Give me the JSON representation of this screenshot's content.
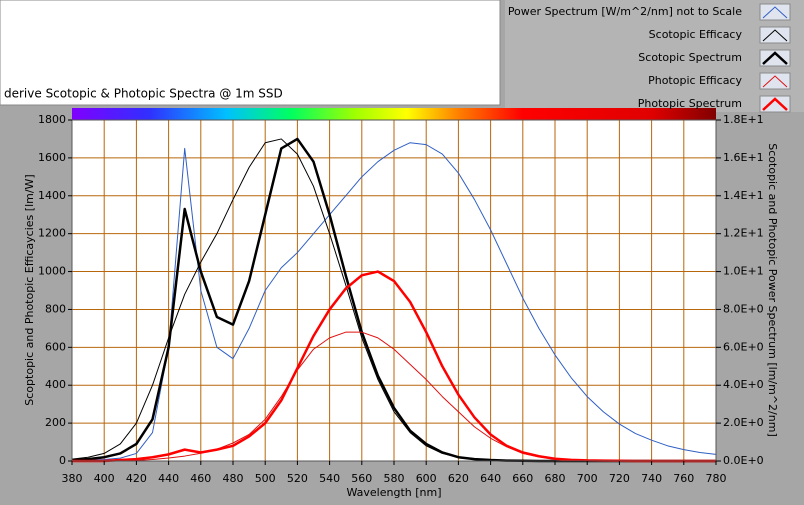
{
  "chart_data": {
    "type": "line",
    "title": "derive Scotopic & Photopic Spectra @ 1m SSD",
    "xlabel": "Wavelength [nm]",
    "ylabel": "Scoptopic and Photopic Efficaycies [lm/W]",
    "y2label": "Scotopic and Photopic Power Spectrum [lm/m^2/nm]",
    "x": [
      380,
      390,
      400,
      410,
      420,
      430,
      440,
      450,
      460,
      470,
      480,
      490,
      500,
      510,
      520,
      530,
      540,
      550,
      560,
      570,
      580,
      590,
      600,
      610,
      620,
      630,
      640,
      650,
      660,
      670,
      680,
      690,
      700,
      710,
      720,
      730,
      740,
      750,
      760,
      770,
      780
    ],
    "xlim": [
      380,
      780
    ],
    "xticks": [
      380,
      400,
      420,
      440,
      460,
      480,
      500,
      520,
      540,
      560,
      580,
      600,
      620,
      640,
      660,
      680,
      700,
      720,
      740,
      760,
      780
    ],
    "ylim": [
      0,
      1800
    ],
    "yticks": [
      0,
      200,
      400,
      600,
      800,
      1000,
      1200,
      1400,
      1600,
      1800
    ],
    "y2lim": [
      0,
      18
    ],
    "y2ticks": [
      {
        "value": 0,
        "label": "0.0E+0"
      },
      {
        "value": 2,
        "label": "2.0E+0"
      },
      {
        "value": 4,
        "label": "4.0E+0"
      },
      {
        "value": 6,
        "label": "6.0E+0"
      },
      {
        "value": 8,
        "label": "8.0E+0"
      },
      {
        "value": 10,
        "label": "1.0E+1"
      },
      {
        "value": 12,
        "label": "1.2E+1"
      },
      {
        "value": 14,
        "label": "1.4E+1"
      },
      {
        "value": 16,
        "label": "1.6E+1"
      },
      {
        "value": 18,
        "label": "1.8E+1"
      }
    ],
    "grid": true,
    "series": [
      {
        "name": "Power Spectrum [W/m^2/nm] not to Scale",
        "color": "#2f5fc4",
        "line_width": 1,
        "values": [
          5,
          5,
          8,
          15,
          40,
          150,
          600,
          1650,
          900,
          600,
          540,
          700,
          900,
          1020,
          1100,
          1200,
          1300,
          1400,
          1500,
          1580,
          1640,
          1680,
          1670,
          1620,
          1520,
          1380,
          1220,
          1040,
          860,
          700,
          560,
          440,
          340,
          260,
          195,
          145,
          110,
          80,
          60,
          45,
          35
        ]
      },
      {
        "name": "Scotopic Efficacy",
        "color": "#000000",
        "line_width": 1,
        "values": [
          10,
          20,
          40,
          90,
          200,
          400,
          650,
          880,
          1050,
          1200,
          1380,
          1550,
          1680,
          1700,
          1620,
          1450,
          1200,
          930,
          650,
          430,
          260,
          150,
          80,
          40,
          20,
          10,
          5,
          2,
          1,
          0,
          0,
          0,
          0,
          0,
          0,
          0,
          0,
          0,
          0,
          0,
          0
        ]
      },
      {
        "name": "Scotopic Spectrum",
        "color": "#000000",
        "line_width": 2.5,
        "axis": "y2",
        "values": [
          0.05,
          0.1,
          0.2,
          0.4,
          0.9,
          2.2,
          6,
          13.3,
          10,
          7.6,
          7.2,
          9.5,
          13,
          16.5,
          17,
          15.8,
          13,
          9.8,
          6.8,
          4.5,
          2.8,
          1.6,
          0.9,
          0.45,
          0.2,
          0.1,
          0.05,
          0.02,
          0.01,
          0,
          0,
          0,
          0,
          0,
          0,
          0,
          0,
          0,
          0,
          0,
          0
        ]
      },
      {
        "name": "Photopic Efficacy",
        "color": "#e01010",
        "line_width": 1,
        "values": [
          0,
          0,
          0.3,
          1,
          3,
          8,
          16,
          26,
          41,
          62,
          95,
          140,
          220,
          340,
          480,
          590,
          650,
          680,
          680,
          650,
          590,
          510,
          430,
          340,
          260,
          180,
          120,
          75,
          40,
          22,
          12,
          6,
          3,
          1.5,
          0.7,
          0.3,
          0.2,
          0.1,
          0,
          0,
          0
        ]
      },
      {
        "name": "Photopic Spectrum",
        "color": "#ff0000",
        "line_width": 2.5,
        "axis": "y2",
        "values": [
          0,
          0,
          0,
          0.05,
          0.1,
          0.2,
          0.35,
          0.6,
          0.45,
          0.6,
          0.8,
          1.3,
          2,
          3.2,
          4.9,
          6.6,
          8,
          9.1,
          9.8,
          10,
          9.5,
          8.4,
          6.8,
          5,
          3.5,
          2.3,
          1.4,
          0.8,
          0.45,
          0.25,
          0.12,
          0.06,
          0.03,
          0.02,
          0.01,
          0,
          0,
          0,
          0,
          0,
          0
        ]
      }
    ]
  }
}
